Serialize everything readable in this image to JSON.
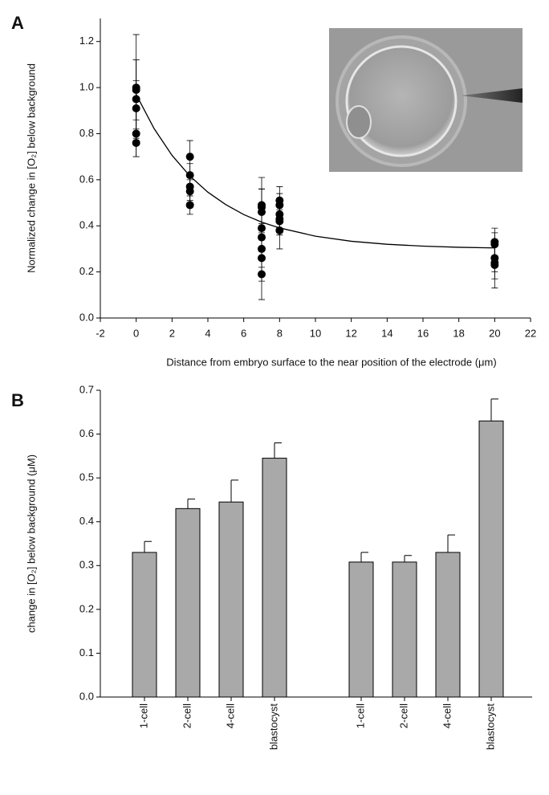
{
  "chart_data": [
    {
      "type": "scatter",
      "panel": "A",
      "ylabel": "Normalized change in [O₂] below background",
      "xlabel": "Distance from embryo surface to the near position of the electrode (μm)",
      "xlim": [
        -2,
        22
      ],
      "xticks": [
        -2,
        0,
        2,
        4,
        6,
        8,
        10,
        12,
        14,
        16,
        18,
        20,
        22
      ],
      "ylim": [
        0,
        1.3
      ],
      "yticks": [
        {
          "value": 0,
          "label": "0.0"
        },
        0.2,
        0.4,
        0.6,
        0.8,
        {
          "value": 1,
          "label": "1.0"
        },
        1.2
      ],
      "color": "#000000",
      "points": {
        "x": [
          0,
          0,
          0,
          0,
          0,
          0,
          3,
          3,
          3,
          3,
          3,
          7,
          7,
          7,
          7,
          7,
          7,
          7,
          7,
          8,
          8,
          8,
          8,
          8,
          8,
          20,
          20,
          20,
          20,
          20
        ],
        "values": [
          1.0,
          0.99,
          0.95,
          0.91,
          0.8,
          0.76,
          0.7,
          0.62,
          0.57,
          0.55,
          0.49,
          0.49,
          0.48,
          0.46,
          0.39,
          0.35,
          0.3,
          0.26,
          0.19,
          0.51,
          0.49,
          0.45,
          0.43,
          0.42,
          0.38,
          0.33,
          0.32,
          0.26,
          0.24,
          0.23
        ],
        "errors": [
          0.23,
          0.13,
          0.17,
          0.12,
          0.1,
          0.06,
          0.07,
          0.05,
          0.06,
          0.05,
          0.04,
          0.12,
          0.08,
          0.1,
          0.09,
          0.06,
          0.08,
          0.1,
          0.11,
          0.06,
          0.05,
          0.06,
          0.07,
          0.05,
          0.08,
          0.06,
          0.05,
          0.06,
          0.07,
          0.1
        ]
      },
      "fit": {
        "x": [
          0,
          1,
          2,
          3,
          4,
          5,
          6,
          7,
          8,
          10,
          12,
          14,
          16,
          18,
          20
        ],
        "values": [
          0.97,
          0.822,
          0.706,
          0.616,
          0.546,
          0.492,
          0.449,
          0.416,
          0.391,
          0.355,
          0.333,
          0.32,
          0.312,
          0.307,
          0.304
        ]
      }
    },
    {
      "type": "bar",
      "panel": "B",
      "ylabel": "change in [O₂] below background (μM)",
      "categories": [
        "1-cell",
        "2-cell",
        "4-cell",
        "blastocyst",
        null,
        "1-cell",
        "2-cell",
        "4-cell",
        "blastocyst"
      ],
      "values": [
        0.33,
        0.43,
        0.445,
        0.545,
        null,
        0.308,
        0.308,
        0.33,
        0.63
      ],
      "errors": [
        0.025,
        0.022,
        0.05,
        0.035,
        null,
        0.022,
        0.015,
        0.04,
        0.05
      ],
      "color": "#a9a9a9",
      "ylim": [
        0,
        0.7
      ],
      "yticks": [
        {
          "value": 0,
          "label": "0.0"
        },
        0.1,
        0.2,
        0.3,
        0.4,
        0.5,
        0.6,
        0.7
      ]
    }
  ]
}
